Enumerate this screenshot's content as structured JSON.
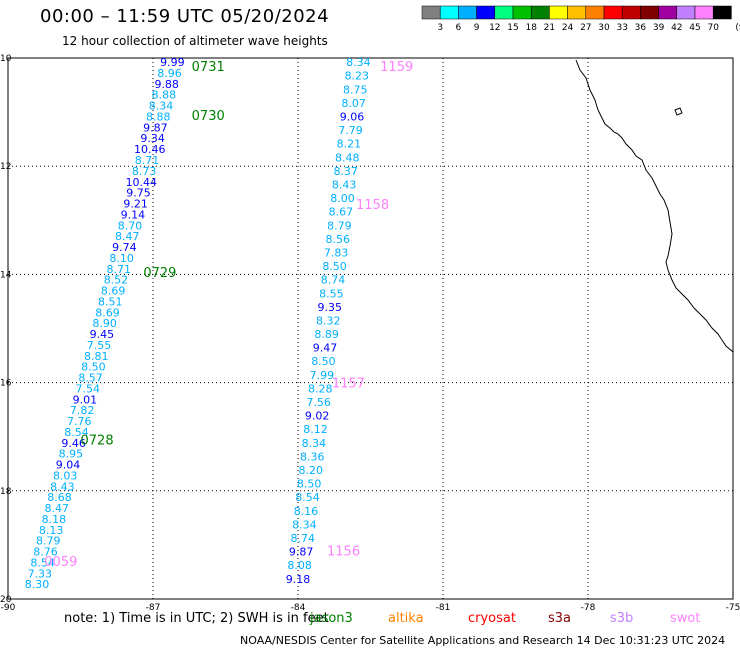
{
  "title": "00:00 – 11:59 UTC 05/20/2024",
  "subtitle": "12 hour collection of altimeter wave heights",
  "legend": {
    "ticks": [
      "3",
      "6",
      "9",
      "12",
      "15",
      "18",
      "21",
      "24",
      "27",
      "30",
      "33",
      "36",
      "39",
      "42",
      "45",
      "70"
    ],
    "unit": "(ft)",
    "colors": [
      "#808080",
      "#00ffff",
      "#00b0ff",
      "#0000ff",
      "#00ff80",
      "#00c000",
      "#008000",
      "#ffff00",
      "#ffc000",
      "#ff8000",
      "#ff0000",
      "#c00000",
      "#800000",
      "#a000a0",
      "#c080ff",
      "#ff80ff",
      "#000000"
    ]
  },
  "axes": {
    "lat_labels": [
      "10",
      "12",
      "14",
      "16",
      "18",
      "20"
    ],
    "lon_labels": [
      "-90",
      "-87",
      "-84",
      "-81",
      "-78",
      "-75"
    ]
  },
  "track_colors": {
    "c1": "#00b0ff",
    "c2": "#0000ff",
    "time": "#008000",
    "time2": "#ff80ff"
  },
  "track_a": {
    "times": [
      {
        "t": "0731",
        "lat": 10.15,
        "lon": -86.2,
        "color": "time"
      },
      {
        "t": "0730",
        "lat": 11.05,
        "lon": -86.2,
        "color": "time"
      },
      {
        "t": "0729",
        "lat": 13.96,
        "lon": -87.2,
        "color": "time"
      },
      {
        "t": "0728",
        "lat": 17.05,
        "lon": -88.5,
        "color": "time"
      },
      {
        "t": "0059",
        "lat": 19.3,
        "lon": -89.25,
        "color": "time2"
      }
    ],
    "values": [
      {
        "v": "9.99",
        "c": "c2"
      },
      {
        "v": "8.96",
        "c": "c1"
      },
      {
        "v": "9.88",
        "c": "c2"
      },
      {
        "v": "8.88",
        "c": "c1"
      },
      {
        "v": "8.34",
        "c": "c1"
      },
      {
        "v": "8.88",
        "c": "c1"
      },
      {
        "v": "9.87",
        "c": "c2"
      },
      {
        "v": "9.34",
        "c": "c2"
      },
      {
        "v": "10.46",
        "c": "c2"
      },
      {
        "v": "8.71",
        "c": "c1"
      },
      {
        "v": "8.73",
        "c": "c1"
      },
      {
        "v": "10.44",
        "c": "c2"
      },
      {
        "v": "9.75",
        "c": "c2"
      },
      {
        "v": "9.21",
        "c": "c2"
      },
      {
        "v": "9.14",
        "c": "c2"
      },
      {
        "v": "8.70",
        "c": "c1"
      },
      {
        "v": "8.47",
        "c": "c1"
      },
      {
        "v": "9.74",
        "c": "c2"
      },
      {
        "v": "8.10",
        "c": "c1"
      },
      {
        "v": "8.71",
        "c": "c1"
      },
      {
        "v": "8.52",
        "c": "c1"
      },
      {
        "v": "8.69",
        "c": "c1"
      },
      {
        "v": "8.51",
        "c": "c1"
      },
      {
        "v": "8.69",
        "c": "c1"
      },
      {
        "v": "8.90",
        "c": "c1"
      },
      {
        "v": "9.45",
        "c": "c2"
      },
      {
        "v": "7.55",
        "c": "c1"
      },
      {
        "v": "8.81",
        "c": "c1"
      },
      {
        "v": "8.50",
        "c": "c1"
      },
      {
        "v": "8.57",
        "c": "c1"
      },
      {
        "v": "7.54",
        "c": "c1"
      },
      {
        "v": "9.01",
        "c": "c2"
      },
      {
        "v": "7.82",
        "c": "c1"
      },
      {
        "v": "7.76",
        "c": "c1"
      },
      {
        "v": "8.54",
        "c": "c1"
      },
      {
        "v": "9.46",
        "c": "c2"
      },
      {
        "v": "8.95",
        "c": "c1"
      },
      {
        "v": "9.04",
        "c": "c2"
      },
      {
        "v": "8.03",
        "c": "c1"
      },
      {
        "v": "8.43",
        "c": "c1"
      },
      {
        "v": "8.68",
        "c": "c1"
      },
      {
        "v": "8.47",
        "c": "c1"
      },
      {
        "v": "8.18",
        "c": "c1"
      },
      {
        "v": "8.13",
        "c": "c1"
      },
      {
        "v": "8.79",
        "c": "c1"
      },
      {
        "v": "8.76",
        "c": "c1"
      },
      {
        "v": "8.54",
        "c": "c1"
      },
      {
        "v": "7.33",
        "c": "c1"
      },
      {
        "v": "8.30",
        "c": "c1"
      }
    ]
  },
  "track_b": {
    "times": [
      {
        "t": "1159",
        "lat": 10.15,
        "lon": -82.3,
        "color": "time2"
      },
      {
        "t": "1158",
        "lat": 12.7,
        "lon": -82.8,
        "color": "time2"
      },
      {
        "t": "1157",
        "lat": 16.0,
        "lon": -83.3,
        "color": "time2"
      },
      {
        "t": "1156",
        "lat": 19.1,
        "lon": -83.4,
        "color": "time2"
      }
    ],
    "values": [
      {
        "v": "8.34",
        "c": "c1"
      },
      {
        "v": "8.23",
        "c": "c1"
      },
      {
        "v": "8.75",
        "c": "c1"
      },
      {
        "v": "8.07",
        "c": "c1"
      },
      {
        "v": "9.06",
        "c": "c2"
      },
      {
        "v": "7.79",
        "c": "c1"
      },
      {
        "v": "8.21",
        "c": "c1"
      },
      {
        "v": "8.48",
        "c": "c1"
      },
      {
        "v": "8.37",
        "c": "c1"
      },
      {
        "v": "8.43",
        "c": "c1"
      },
      {
        "v": "8.00",
        "c": "c1"
      },
      {
        "v": "8.67",
        "c": "c1"
      },
      {
        "v": "8.79",
        "c": "c1"
      },
      {
        "v": "8.56",
        "c": "c1"
      },
      {
        "v": "7.83",
        "c": "c1"
      },
      {
        "v": "8.50",
        "c": "c1"
      },
      {
        "v": "8.74",
        "c": "c1"
      },
      {
        "v": "8.55",
        "c": "c1"
      },
      {
        "v": "9.35",
        "c": "c2"
      },
      {
        "v": "8.32",
        "c": "c1"
      },
      {
        "v": "8.89",
        "c": "c1"
      },
      {
        "v": "9.47",
        "c": "c2"
      },
      {
        "v": "8.50",
        "c": "c1"
      },
      {
        "v": "7.99",
        "c": "c1"
      },
      {
        "v": "8.28",
        "c": "c1"
      },
      {
        "v": "7.56",
        "c": "c1"
      },
      {
        "v": "9.02",
        "c": "c2"
      },
      {
        "v": "8.12",
        "c": "c1"
      },
      {
        "v": "8.34",
        "c": "c1"
      },
      {
        "v": "8.36",
        "c": "c1"
      },
      {
        "v": "8.20",
        "c": "c1"
      },
      {
        "v": "8.50",
        "c": "c1"
      },
      {
        "v": "8.54",
        "c": "c1"
      },
      {
        "v": "8.16",
        "c": "c1"
      },
      {
        "v": "8.34",
        "c": "c1"
      },
      {
        "v": "8.74",
        "c": "c1"
      },
      {
        "v": "9.87",
        "c": "c2"
      },
      {
        "v": "8.08",
        "c": "c1"
      },
      {
        "v": "9.18",
        "c": "c2"
      }
    ]
  },
  "note": "note:  1) Time is in UTC;  2) SWH is in feet",
  "satellites": [
    {
      "name": "jason3",
      "color": "#008000"
    },
    {
      "name": "altika",
      "color": "#ff8000"
    },
    {
      "name": "cryosat",
      "color": "#ff0000"
    },
    {
      "name": "s3a",
      "color": "#800000"
    },
    {
      "name": "s3b",
      "color": "#c080ff"
    },
    {
      "name": "swot",
      "color": "#ff80ff"
    }
  ],
  "credit": "NOAA/NESDIS Center for Satellite Applications and Research    14 Dec 10:31:23 UTC 2024"
}
